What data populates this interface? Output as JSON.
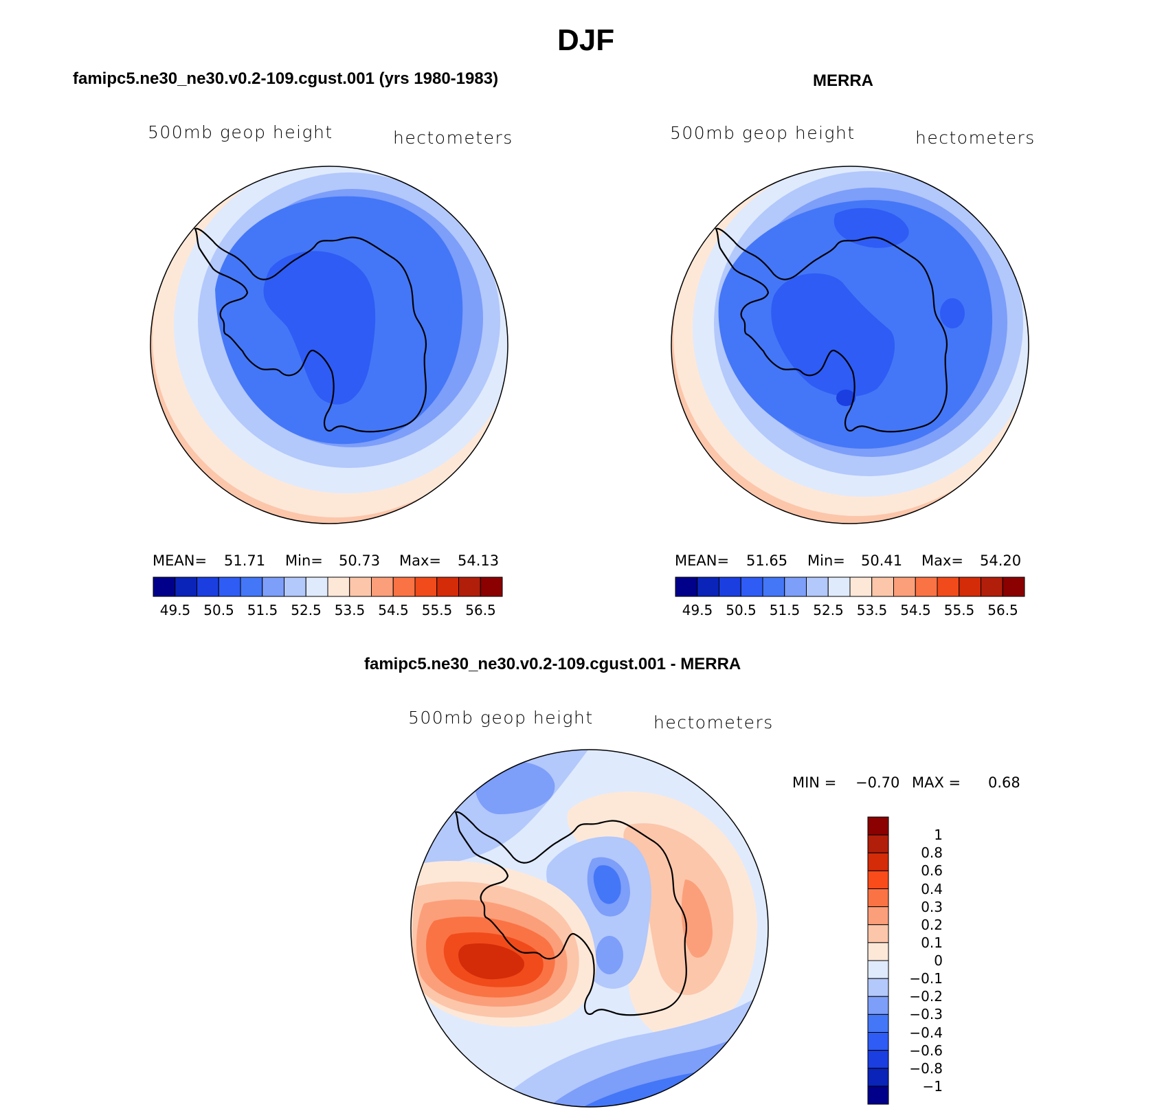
{
  "title": "DJF",
  "panels": [
    {
      "title": "famipc5.ne30_ne30.v0.2-109.cgust.001 (yrs 1980-1983)",
      "field_label": "500mb geop height",
      "units_label": "hectometers",
      "stats": {
        "mean_label": "MEAN=",
        "mean": "51.71",
        "min_label": "Min=",
        "min": "50.73",
        "max_label": "Max=",
        "max": "54.13"
      }
    },
    {
      "title": "MERRA",
      "field_label": "500mb geop height",
      "units_label": "hectometers",
      "stats": {
        "mean_label": "MEAN=",
        "mean": "51.65",
        "min_label": "Min=",
        "min": "50.41",
        "max_label": "Max=",
        "max": "54.20"
      }
    },
    {
      "title": "famipc5.ne30_ne30.v0.2-109.cgust.001 - MERRA",
      "field_label": "500mb geop height",
      "units_label": "hectometers",
      "stats": {
        "min_label": "MIN =",
        "min": "−0.70",
        "max_label": "MAX =",
        "max": "0.68"
      }
    }
  ],
  "colorbar_abs": {
    "colors": [
      "#00008b",
      "#0a23b8",
      "#1a3ee0",
      "#2e5cf5",
      "#4477f7",
      "#7d9ef9",
      "#b3c8fb",
      "#dfeafd",
      "#fde8d8",
      "#fcc6aa",
      "#fb9f7a",
      "#fa7344",
      "#f14b1b",
      "#d42b09",
      "#b11e0a",
      "#8b0000"
    ],
    "tick_labels": [
      "49.5",
      "50.5",
      "51.5",
      "52.5",
      "53.5",
      "54.5",
      "55.5",
      "56.5"
    ]
  },
  "colorbar_diff": {
    "colors": [
      "#8b0000",
      "#b11e0a",
      "#d42b09",
      "#fa4b1b",
      "#fa7344",
      "#fb9f7a",
      "#fcc6aa",
      "#fde8d8",
      "#dfeafd",
      "#b3c8fb",
      "#7d9ef9",
      "#4477f7",
      "#2e5cf5",
      "#1a3ee0",
      "#0a23b8",
      "#00008b"
    ],
    "tick_labels": [
      "1",
      "0.8",
      "0.6",
      "0.4",
      "0.3",
      "0.2",
      "0.1",
      "0",
      "−0.1",
      "−0.2",
      "−0.3",
      "−0.4",
      "−0.6",
      "−0.8",
      "−1"
    ]
  }
}
